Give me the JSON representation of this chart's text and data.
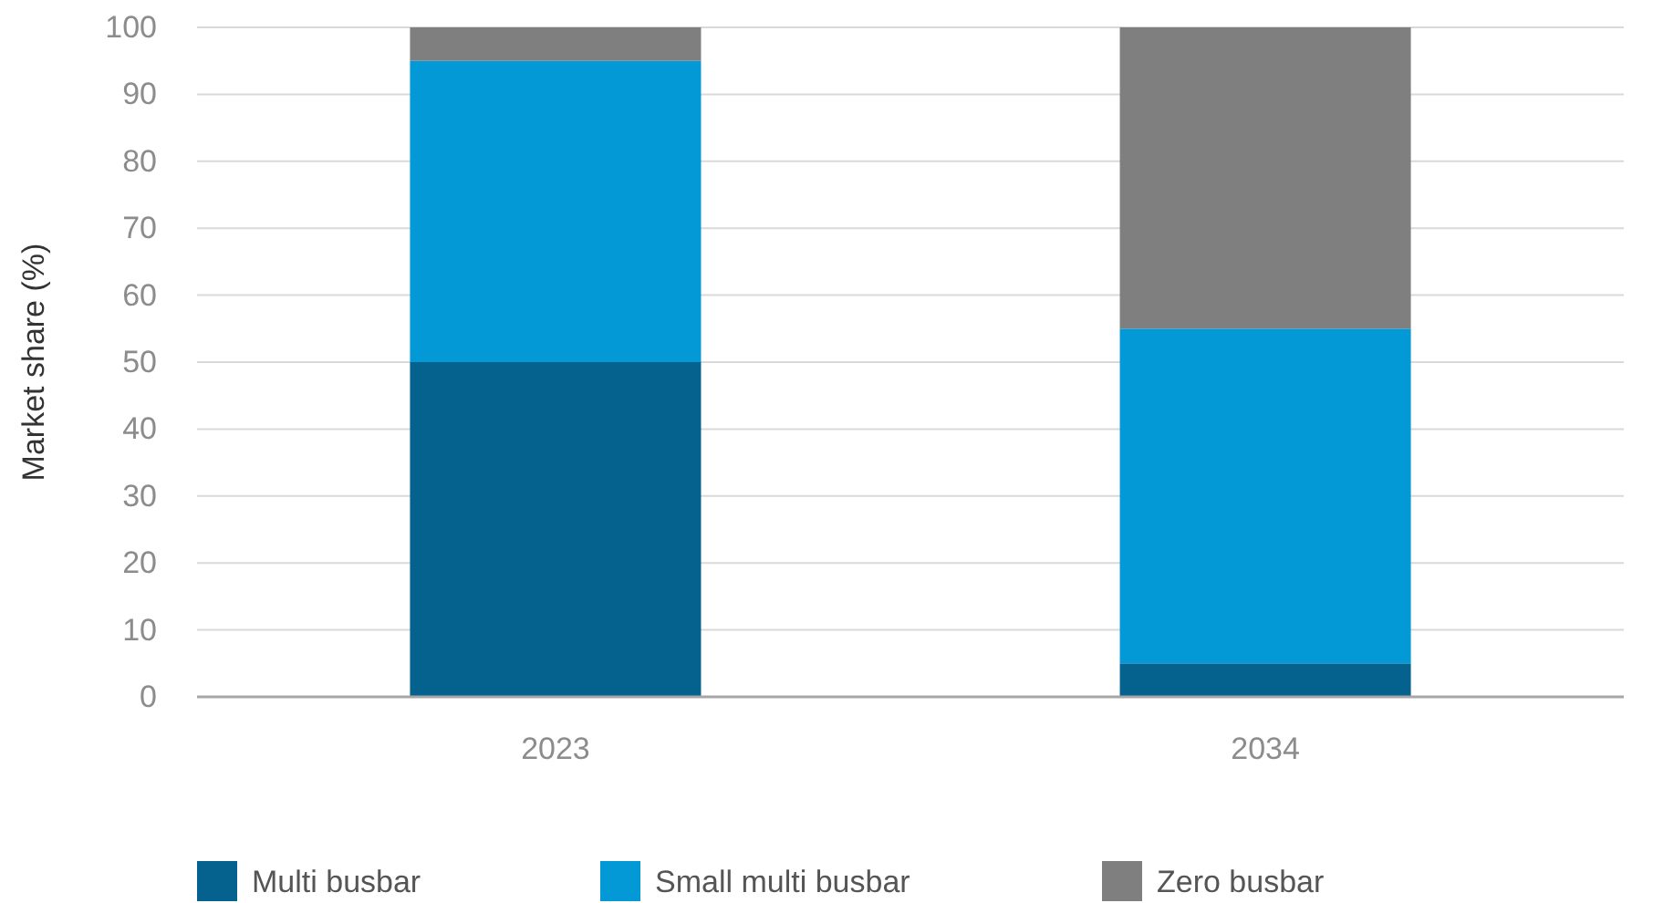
{
  "chart_data": {
    "type": "bar",
    "stacked": true,
    "ylabel": "Market share (%)",
    "categories": [
      "2023",
      "2034"
    ],
    "series": [
      {
        "name": "Multi busbar",
        "color": "#05628f",
        "values": [
          50,
          5
        ]
      },
      {
        "name": "Small multi busbar",
        "color": "#0399d6",
        "values": [
          45,
          50
        ]
      },
      {
        "name": "Zero busbar",
        "color": "#7f7f7f",
        "values": [
          5,
          45
        ]
      }
    ],
    "ylim": [
      0,
      100
    ],
    "yticks": [
      0,
      10,
      20,
      30,
      40,
      50,
      60,
      70,
      80,
      90,
      100
    ],
    "grid": "y",
    "legend": "bottom"
  }
}
